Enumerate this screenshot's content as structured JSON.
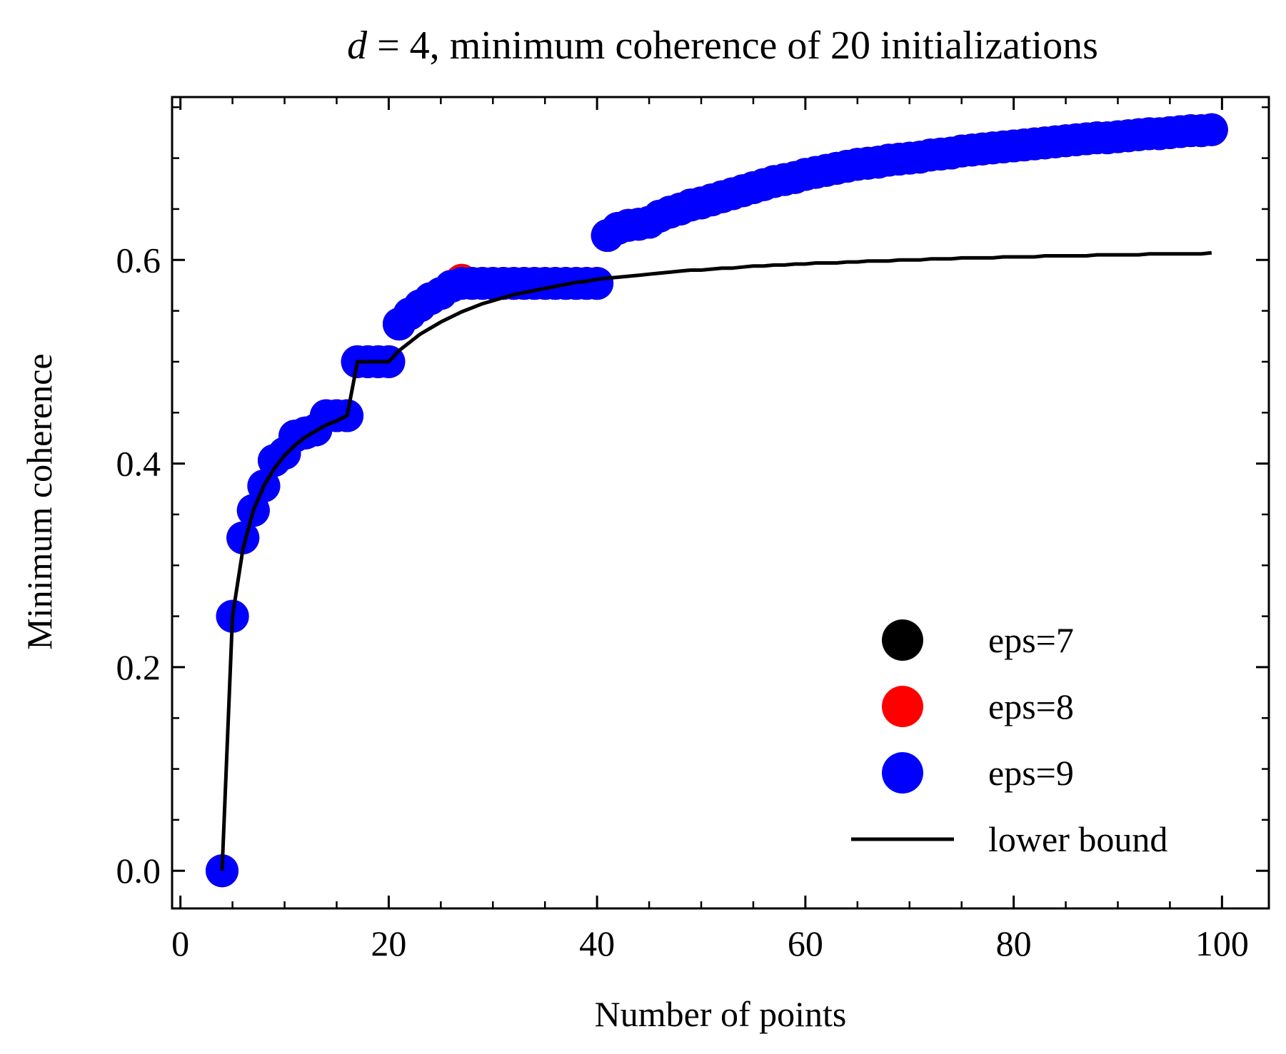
{
  "chart_data": {
    "type": "scatter",
    "title": "d = 4, minimum coherence of 20 initializations",
    "title_parts": {
      "variable": "d",
      "equals": " = 4, ",
      "rest": "minimum coherence of 20 initializations"
    },
    "xlabel": "Number of points",
    "ylabel": "Minimum coherence",
    "xlim": [
      -0.8,
      104.5
    ],
    "ylim": [
      -0.037,
      0.76
    ],
    "x_ticks": [
      0,
      20,
      40,
      60,
      80,
      100
    ],
    "x_tick_labels": [
      "0",
      "20",
      "40",
      "60",
      "80",
      "100"
    ],
    "y_ticks": [
      0.0,
      0.2,
      0.4,
      0.6
    ],
    "y_tick_labels": [
      "0.0",
      "0.2",
      "0.4",
      "0.6"
    ],
    "x_minor_step": 5,
    "y_minor_step": 0.05,
    "grid": false,
    "legend_position": "lower-right",
    "colors": {
      "eps7": "#000000",
      "eps8": "#ff0000",
      "eps9": "#0000ff",
      "lower_bound": "#000000",
      "axes": "#000000"
    },
    "x": [
      4,
      5,
      6,
      7,
      8,
      9,
      10,
      11,
      12,
      13,
      14,
      15,
      16,
      17,
      18,
      19,
      20,
      21,
      22,
      23,
      24,
      25,
      26,
      27,
      28,
      29,
      30,
      31,
      32,
      33,
      34,
      35,
      36,
      37,
      38,
      39,
      40,
      41,
      42,
      43,
      44,
      45,
      46,
      47,
      48,
      49,
      50,
      51,
      52,
      53,
      54,
      55,
      56,
      57,
      58,
      59,
      60,
      61,
      62,
      63,
      64,
      65,
      66,
      67,
      68,
      69,
      70,
      71,
      72,
      73,
      74,
      75,
      76,
      77,
      78,
      79,
      80,
      81,
      82,
      83,
      84,
      85,
      86,
      87,
      88,
      89,
      90,
      91,
      92,
      93,
      94,
      95,
      96,
      97,
      98,
      99
    ],
    "series": [
      {
        "name": "eps=7",
        "kind": "scatter",
        "color": "#000000",
        "values": [
          0.0,
          0.25,
          0.327,
          0.354,
          0.378,
          0.403,
          0.41,
          0.427,
          0.43,
          0.433,
          0.447,
          0.447,
          0.447,
          0.5,
          0.5,
          0.5,
          0.5,
          0.537,
          0.547,
          0.555,
          0.562,
          0.567,
          0.574,
          0.58,
          0.577,
          0.577,
          0.577,
          0.577,
          0.577,
          0.577,
          0.577,
          0.577,
          0.577,
          0.577,
          0.577,
          0.577,
          0.577,
          0.624,
          0.631,
          0.634,
          0.635,
          0.637,
          0.643,
          0.647,
          0.65,
          0.654,
          0.656,
          0.659,
          0.662,
          0.665,
          0.668,
          0.671,
          0.674,
          0.677,
          0.679,
          0.681,
          0.684,
          0.686,
          0.688,
          0.69,
          0.692,
          0.694,
          0.695,
          0.696,
          0.698,
          0.699,
          0.7,
          0.701,
          0.703,
          0.704,
          0.705,
          0.707,
          0.708,
          0.709,
          0.71,
          0.711,
          0.712,
          0.713,
          0.714,
          0.715,
          0.716,
          0.717,
          0.718,
          0.719,
          0.72,
          0.72,
          0.721,
          0.722,
          0.723,
          0.724,
          0.724,
          0.725,
          0.726,
          0.727,
          0.727,
          0.728
        ]
      },
      {
        "name": "eps=8",
        "kind": "scatter",
        "color": "#ff0000",
        "values": [
          0.0,
          0.25,
          0.327,
          0.354,
          0.378,
          0.403,
          0.41,
          0.427,
          0.43,
          0.433,
          0.447,
          0.447,
          0.447,
          0.5,
          0.5,
          0.5,
          0.5,
          0.537,
          0.547,
          0.555,
          0.562,
          0.567,
          0.574,
          0.58,
          0.577,
          0.577,
          0.577,
          0.577,
          0.577,
          0.577,
          0.577,
          0.577,
          0.577,
          0.577,
          0.577,
          0.577,
          0.577,
          0.624,
          0.631,
          0.634,
          0.635,
          0.637,
          0.643,
          0.647,
          0.65,
          0.654,
          0.656,
          0.659,
          0.662,
          0.665,
          0.668,
          0.671,
          0.674,
          0.677,
          0.679,
          0.681,
          0.684,
          0.686,
          0.688,
          0.69,
          0.692,
          0.694,
          0.695,
          0.696,
          0.698,
          0.699,
          0.7,
          0.701,
          0.703,
          0.704,
          0.705,
          0.707,
          0.708,
          0.709,
          0.71,
          0.711,
          0.712,
          0.713,
          0.714,
          0.715,
          0.716,
          0.717,
          0.718,
          0.719,
          0.72,
          0.72,
          0.721,
          0.722,
          0.723,
          0.724,
          0.724,
          0.725,
          0.726,
          0.727,
          0.727,
          0.728
        ]
      },
      {
        "name": "eps=9",
        "kind": "scatter",
        "color": "#0000ff",
        "values": [
          0.0,
          0.25,
          0.327,
          0.354,
          0.378,
          0.403,
          0.41,
          0.427,
          0.43,
          0.433,
          0.447,
          0.447,
          0.447,
          0.5,
          0.5,
          0.5,
          0.5,
          0.537,
          0.547,
          0.555,
          0.562,
          0.567,
          0.574,
          0.577,
          0.577,
          0.577,
          0.577,
          0.577,
          0.577,
          0.577,
          0.577,
          0.577,
          0.577,
          0.577,
          0.577,
          0.577,
          0.577,
          0.624,
          0.631,
          0.634,
          0.635,
          0.637,
          0.643,
          0.647,
          0.65,
          0.654,
          0.656,
          0.659,
          0.662,
          0.665,
          0.668,
          0.671,
          0.674,
          0.677,
          0.679,
          0.681,
          0.684,
          0.686,
          0.688,
          0.69,
          0.692,
          0.694,
          0.695,
          0.696,
          0.698,
          0.699,
          0.7,
          0.701,
          0.703,
          0.704,
          0.705,
          0.707,
          0.708,
          0.709,
          0.71,
          0.711,
          0.712,
          0.713,
          0.714,
          0.715,
          0.716,
          0.717,
          0.718,
          0.719,
          0.72,
          0.72,
          0.721,
          0.722,
          0.723,
          0.724,
          0.724,
          0.725,
          0.726,
          0.727,
          0.727,
          0.728
        ]
      },
      {
        "name": "lower bound",
        "kind": "line",
        "color": "#000000",
        "values": [
          0.0,
          0.25,
          0.316,
          0.354,
          0.378,
          0.395,
          0.408,
          0.418,
          0.426,
          0.432,
          0.438,
          0.442,
          0.447,
          0.5,
          0.5,
          0.5,
          0.5,
          0.511,
          0.519,
          0.527,
          0.533,
          0.539,
          0.544,
          0.549,
          0.553,
          0.557,
          0.56,
          0.563,
          0.566,
          0.568,
          0.57,
          0.572,
          0.574,
          0.576,
          0.578,
          0.579,
          0.581,
          0.582,
          0.583,
          0.584,
          0.585,
          0.586,
          0.587,
          0.588,
          0.589,
          0.59,
          0.59,
          0.591,
          0.592,
          0.592,
          0.593,
          0.594,
          0.594,
          0.595,
          0.595,
          0.596,
          0.596,
          0.597,
          0.597,
          0.597,
          0.598,
          0.598,
          0.599,
          0.599,
          0.599,
          0.6,
          0.6,
          0.6,
          0.601,
          0.601,
          0.601,
          0.602,
          0.602,
          0.602,
          0.602,
          0.603,
          0.603,
          0.603,
          0.603,
          0.604,
          0.604,
          0.604,
          0.604,
          0.604,
          0.605,
          0.605,
          0.605,
          0.605,
          0.605,
          0.606,
          0.606,
          0.606,
          0.606,
          0.606,
          0.606,
          0.607
        ]
      }
    ]
  }
}
